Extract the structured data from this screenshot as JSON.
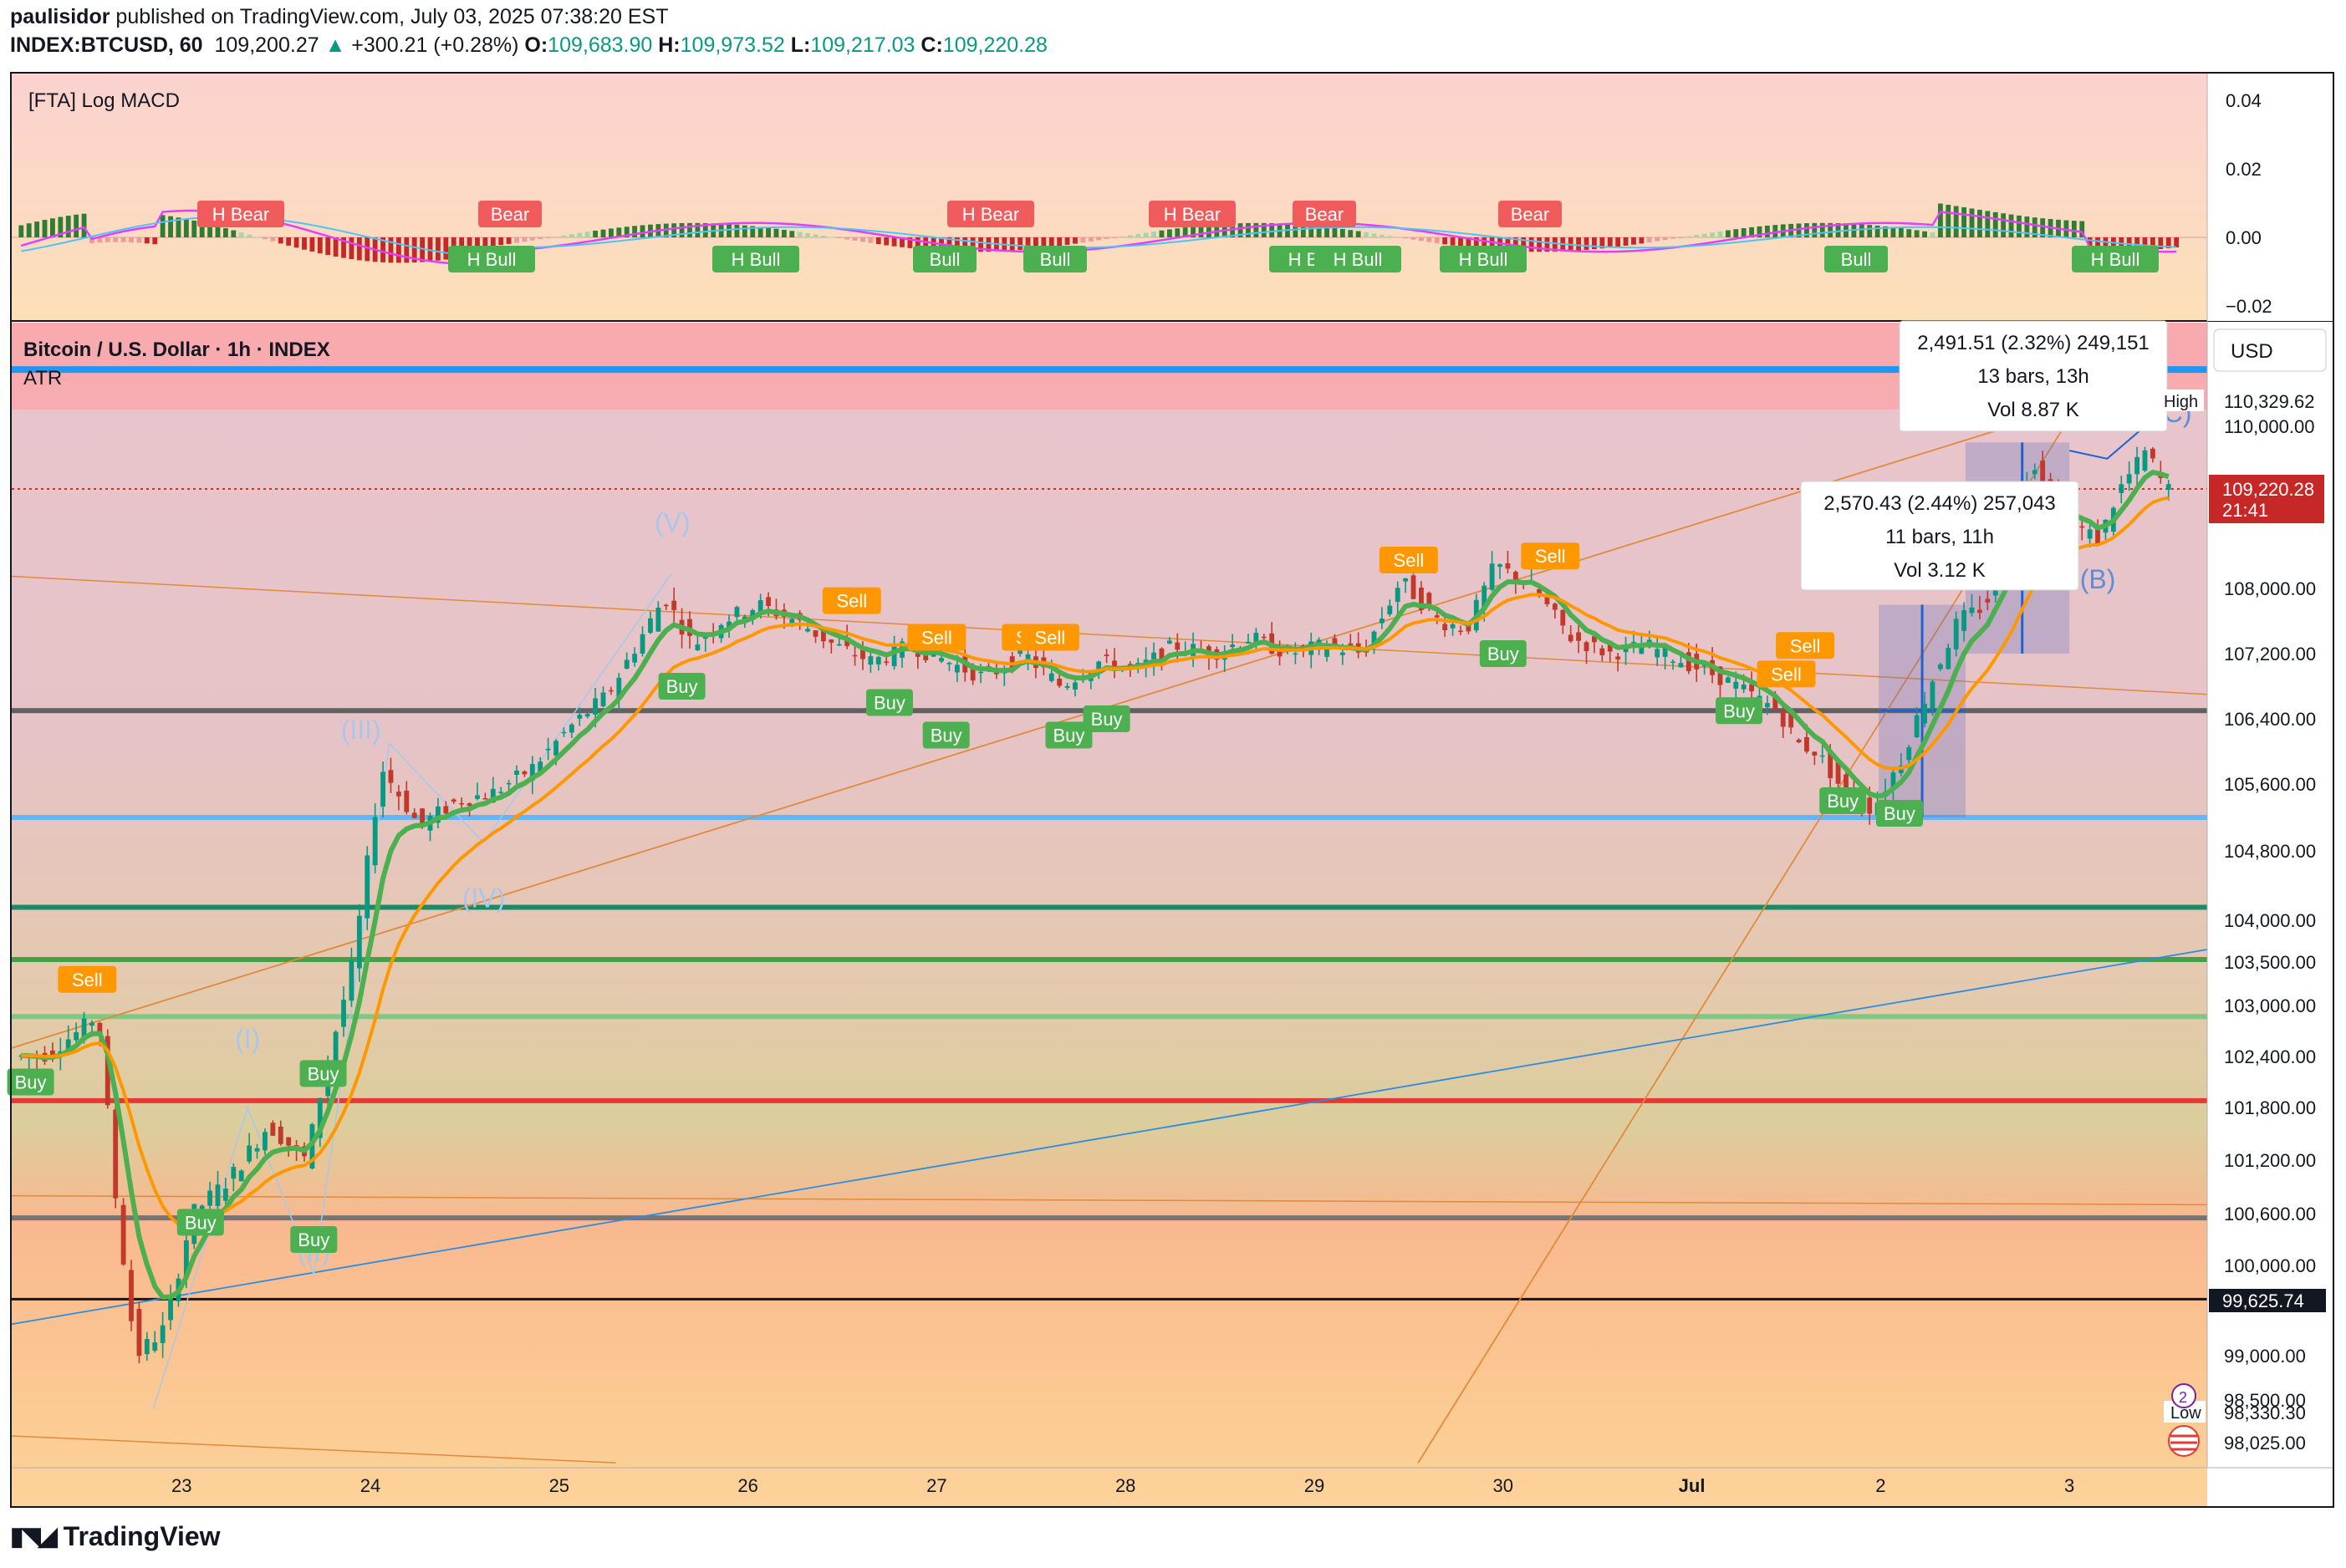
{
  "header": {
    "author": "paulisidor",
    "published": "published on TradingView.com, July 03, 2025 07:38:20 EST",
    "symbol": "INDEX:BTCUSD, 60",
    "last": "109,200.27",
    "change": "+300.21 (+0.28%)",
    "o_label": "O:",
    "o": "109,683.90",
    "h_label": "H:",
    "h": "109,973.52",
    "l_label": "L:",
    "l": "109,217.03",
    "c_label": "C:",
    "c": "109,220.28"
  },
  "macd_pane": {
    "title": "[FTA] Log MACD",
    "axis_ticks": [
      "0.04",
      "0.02",
      "0.00",
      "−0.02"
    ],
    "tick_values": [
      0.04,
      0.02,
      0.0,
      -0.02
    ],
    "markers": [
      {
        "text": "H Bear",
        "kind": "bear",
        "t": 3.2
      },
      {
        "text": "Bear",
        "kind": "bear",
        "t": 26.5
      },
      {
        "text": "H Bull",
        "kind": "bull",
        "t": 25.9
      },
      {
        "text": "H Bull",
        "kind": "bull",
        "t": 39.0
      },
      {
        "text": "H Bear",
        "kind": "bear",
        "t": 53.5
      },
      {
        "text": "Bull",
        "kind": "bull",
        "t": 52.0
      },
      {
        "text": "Bull",
        "kind": "bull",
        "t": 58.0
      },
      {
        "text": "H Bear",
        "kind": "bear",
        "t": 64.0
      },
      {
        "text": "H Bull",
        "kind": "bull",
        "t": 68.0
      },
      {
        "text": "Bear",
        "kind": "bear",
        "t": 71.0
      },
      {
        "text": "H Bull",
        "kind": "bull",
        "t": 72.0
      },
      {
        "text": "H Bull",
        "kind": "bull",
        "t": 80.0
      },
      {
        "text": "Bear",
        "kind": "bear",
        "t": 82.0
      },
      {
        "text": "Bull",
        "kind": "bull",
        "t": 101.0
      },
      {
        "text": "H Bull",
        "kind": "bull",
        "t": 114.0
      }
    ]
  },
  "price_pane": {
    "title": "Bitcoin / U.S. Dollar · 1h · INDEX",
    "indicator": "ATR",
    "currency": "USD",
    "axis_ticks": [
      "110,000.00",
      "108,000.00",
      "107,200.00",
      "106,400.00",
      "105,600.00",
      "104,800.00",
      "104,000.00",
      "103,500.00",
      "103,000.00",
      "102,400.00",
      "101,800.00",
      "101,200.00",
      "100,600.00",
      "100,000.00",
      "99,000.00",
      "98,500.00",
      "98,025.00"
    ],
    "price_tag_last": "109,220.28",
    "price_tag_timer": "21:41",
    "price_tag_black": "99,625.74",
    "high_label": "High",
    "high_value": "110,329.62",
    "low_label": "Low",
    "low_value": "98,330.30",
    "x_ticks": [
      "23",
      "24",
      "25",
      "26",
      "27",
      "28",
      "29",
      "30",
      "Jul",
      "2",
      "3"
    ],
    "measure_top": {
      "line1": "2,491.51 (2.32%) 249,151",
      "line2": "13 bars, 13h",
      "line3": "Vol 8.87 K"
    },
    "measure_mid": {
      "line1": "2,570.43 (2.44%) 257,043",
      "line2": "11 bars, 11h",
      "line3": "Vol 3.12 K"
    },
    "wave_labels": [
      "(V)",
      "(III)",
      "(IV)",
      "(I)",
      "(II)",
      "(A)",
      "(B)",
      "(C)"
    ],
    "signals": [
      {
        "text": "Sell",
        "kind": "sell"
      },
      {
        "text": "Buy",
        "kind": "buy"
      },
      {
        "text": "Buy",
        "kind": "buy"
      },
      {
        "text": "Buy",
        "kind": "buy"
      },
      {
        "text": "Buy",
        "kind": "buy"
      },
      {
        "text": "Buy",
        "kind": "buy"
      },
      {
        "text": "Sell",
        "kind": "sell"
      },
      {
        "text": "Sell",
        "kind": "sell"
      },
      {
        "text": "Sell",
        "kind": "sell"
      },
      {
        "text": "Sell",
        "kind": "sell"
      },
      {
        "text": "Buy",
        "kind": "buy"
      },
      {
        "text": "Buy",
        "kind": "buy"
      },
      {
        "text": "Buy",
        "kind": "buy"
      },
      {
        "text": "Buy",
        "kind": "buy"
      },
      {
        "text": "Sell",
        "kind": "sell"
      },
      {
        "text": "Sell",
        "kind": "sell"
      },
      {
        "text": "Sell",
        "kind": "sell"
      },
      {
        "text": "Buy",
        "kind": "buy"
      },
      {
        "text": "Buy",
        "kind": "buy"
      },
      {
        "text": "Buy",
        "kind": "buy"
      },
      {
        "text": "Sell",
        "kind": "sell"
      },
      {
        "text": "Buy",
        "kind": "buy"
      }
    ]
  },
  "colors": {
    "up": "#089981",
    "down": "#c0392b",
    "bull_tag": "#4caf50",
    "bear_tag": "#f05c5c",
    "sell_tag": "#ff9800",
    "ema_green": "#4caf50",
    "ema_orange": "#ff9800",
    "blue_line": "#2a8de0",
    "accent_red": "#e53935"
  },
  "chart_data": [
    {
      "type": "line",
      "title": "[FTA] Log MACD",
      "ylim": [
        -0.02,
        0.04
      ],
      "series": []
    },
    {
      "type": "candlestick",
      "title": "Bitcoin / U.S. Dollar · 1h · INDEX",
      "ylabel": "USD",
      "ylim": [
        97800,
        111000
      ],
      "x": [
        "23",
        "24",
        "25",
        "26",
        "27",
        "28",
        "29",
        "30",
        "Jul",
        "2",
        "3"
      ],
      "horizontal_levels": [
        110700,
        105200,
        104150,
        103530,
        102870,
        101880,
        100550,
        99625.74
      ],
      "close_path": [
        [
          22.3,
          102400
        ],
        [
          22.5,
          102700
        ],
        [
          22.6,
          102900
        ],
        [
          22.7,
          100600
        ],
        [
          22.8,
          99000
        ],
        [
          22.95,
          99300
        ],
        [
          23.1,
          100600
        ],
        [
          23.3,
          101000
        ],
        [
          23.5,
          101600
        ],
        [
          23.6,
          101400
        ],
        [
          23.7,
          101200
        ],
        [
          23.8,
          102200
        ],
        [
          23.95,
          103500
        ],
        [
          24.1,
          105800
        ],
        [
          24.3,
          105100
        ],
        [
          24.5,
          105400
        ],
        [
          24.7,
          105500
        ],
        [
          24.9,
          105800
        ],
        [
          25.1,
          106300
        ],
        [
          25.3,
          106700
        ],
        [
          25.5,
          107500
        ],
        [
          25.6,
          107900
        ],
        [
          25.75,
          107300
        ],
        [
          25.9,
          107600
        ],
        [
          26.1,
          107800
        ],
        [
          26.3,
          107600
        ],
        [
          26.5,
          107300
        ],
        [
          26.7,
          107100
        ],
        [
          26.9,
          107300
        ],
        [
          27.1,
          107100
        ],
        [
          27.3,
          106900
        ],
        [
          27.5,
          107200
        ],
        [
          27.7,
          106800
        ],
        [
          27.9,
          107100
        ],
        [
          28.1,
          107000
        ],
        [
          28.3,
          107300
        ],
        [
          28.5,
          107200
        ],
        [
          28.7,
          107400
        ],
        [
          28.9,
          107200
        ],
        [
          29.1,
          107300
        ],
        [
          29.3,
          107200
        ],
        [
          29.5,
          108100
        ],
        [
          29.7,
          107600
        ],
        [
          29.85,
          107500
        ],
        [
          30.0,
          108300
        ],
        [
          30.2,
          108000
        ],
        [
          30.4,
          107400
        ],
        [
          30.6,
          107200
        ],
        [
          30.8,
          107300
        ],
        [
          31.0,
          107100
        ],
        [
          31.2,
          106900
        ],
        [
          31.35,
          106700
        ],
        [
          31.5,
          106500
        ],
        [
          31.6,
          106100
        ],
        [
          31.7,
          106000
        ],
        [
          31.85,
          105500
        ],
        [
          32.0,
          105300
        ],
        [
          32.15,
          105900
        ],
        [
          32.3,
          106800
        ],
        [
          32.45,
          107600
        ],
        [
          32.6,
          107800
        ],
        [
          32.75,
          108900
        ],
        [
          32.85,
          109600
        ],
        [
          32.95,
          109100
        ],
        [
          33.05,
          108800
        ],
        [
          33.2,
          108600
        ],
        [
          33.3,
          109200
        ],
        [
          33.45,
          109700
        ],
        [
          33.55,
          109220
        ]
      ]
    }
  ]
}
